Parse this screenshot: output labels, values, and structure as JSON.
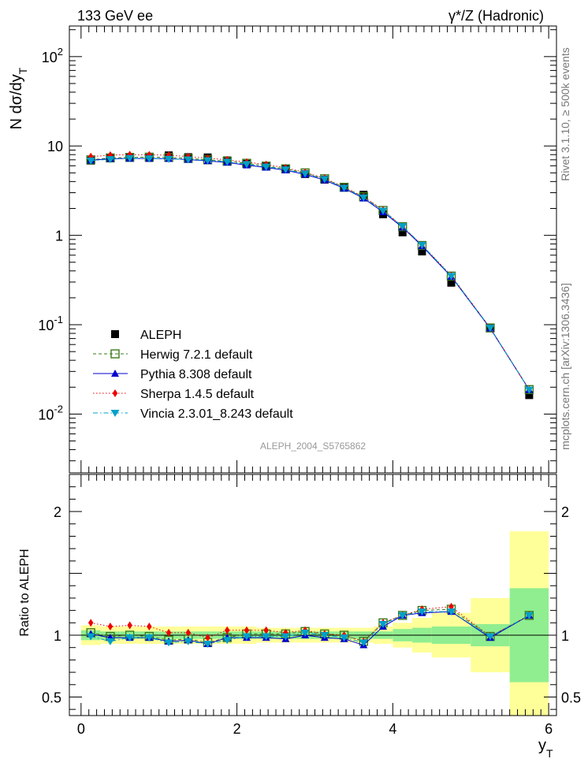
{
  "header": {
    "left": "133 GeV ee",
    "right": "γ*/Z (Hadronic)"
  },
  "side_labels": {
    "top": "Rivet 3.1.10, ≥ 500k events",
    "bottom": "mcplots.cern.ch [arXiv:1306.3436]"
  },
  "watermark": "ALEPH_2004_S5765862",
  "chart_data": [
    {
      "type": "scatter",
      "panel": "main",
      "ylabel": "N dσ/dy_T",
      "yscale": "log",
      "ylim": [
        0.0022,
        220
      ],
      "xlim": [
        -0.15,
        6.1
      ],
      "ytick_labels": [
        "10^-2",
        "10^-1",
        "1",
        "10",
        "10^2"
      ],
      "legend_position": "left-center",
      "series": [
        {
          "name": "ALEPH",
          "color": "#000000",
          "marker": "square-filled",
          "line": "none",
          "x": [
            0.125,
            0.375,
            0.625,
            0.875,
            1.125,
            1.375,
            1.625,
            1.875,
            2.125,
            2.375,
            2.625,
            2.875,
            3.125,
            3.375,
            3.625,
            3.875,
            4.125,
            4.375,
            4.75,
            5.25,
            5.75
          ],
          "values": [
            6.85,
            7.4,
            7.4,
            7.35,
            7.85,
            7.5,
            7.45,
            6.9,
            6.3,
            5.9,
            5.55,
            4.85,
            4.2,
            3.45,
            2.85,
            1.72,
            1.08,
            0.66,
            0.295,
            0.093,
            0.0163
          ]
        },
        {
          "name": "Herwig 7.2.1 default",
          "color": "#3b7a1a",
          "marker": "square-open",
          "line": "dashed",
          "x": [
            0.125,
            0.375,
            0.625,
            0.875,
            1.125,
            1.375,
            1.625,
            1.875,
            2.125,
            2.375,
            2.625,
            2.875,
            3.125,
            3.375,
            3.625,
            3.875,
            4.125,
            4.375,
            4.75,
            5.25,
            5.75
          ],
          "values": [
            7.0,
            7.35,
            7.45,
            7.5,
            7.45,
            7.25,
            7.0,
            6.75,
            6.4,
            5.95,
            5.55,
            5.0,
            4.3,
            3.45,
            2.7,
            1.9,
            1.25,
            0.77,
            0.35,
            0.092,
            0.0188
          ]
        },
        {
          "name": "Pythia 8.308 default",
          "color": "#0000cc",
          "marker": "triangle-up",
          "line": "solid",
          "x": [
            0.125,
            0.375,
            0.625,
            0.875,
            1.125,
            1.375,
            1.625,
            1.875,
            2.125,
            2.375,
            2.625,
            2.875,
            3.125,
            3.375,
            3.625,
            3.875,
            4.125,
            4.375,
            4.75,
            5.25,
            5.75
          ],
          "values": [
            6.9,
            7.2,
            7.25,
            7.25,
            7.2,
            7.05,
            6.8,
            6.55,
            6.1,
            5.75,
            5.35,
            4.8,
            4.15,
            3.35,
            2.6,
            1.82,
            1.23,
            0.76,
            0.345,
            0.091,
            0.0187
          ]
        },
        {
          "name": "Sherpa 1.4.5 default",
          "color": "#ee0000",
          "marker": "diamond",
          "line": "dotted",
          "x": [
            0.125,
            0.375,
            0.625,
            0.875,
            1.125,
            1.375,
            1.625,
            1.875,
            2.125,
            2.375,
            2.625,
            2.875,
            3.125,
            3.375,
            3.625,
            3.875,
            4.125,
            4.375,
            4.75,
            5.25,
            5.75
          ],
          "values": [
            7.6,
            7.9,
            8.0,
            7.95,
            7.9,
            7.6,
            7.3,
            7.0,
            6.6,
            6.2,
            5.7,
            5.05,
            4.35,
            3.45,
            2.7,
            1.92,
            1.25,
            0.78,
            0.355,
            0.092,
            0.0188
          ]
        },
        {
          "name": "Vincia 2.3.01_8.243 default",
          "color": "#00a0c8",
          "marker": "triangle-down",
          "line": "dashdot",
          "x": [
            0.125,
            0.375,
            0.625,
            0.875,
            1.125,
            1.375,
            1.625,
            1.875,
            2.125,
            2.375,
            2.625,
            2.875,
            3.125,
            3.375,
            3.625,
            3.875,
            4.125,
            4.375,
            4.75,
            5.25,
            5.75
          ],
          "values": [
            6.85,
            7.1,
            7.3,
            7.25,
            7.15,
            7.05,
            6.9,
            6.65,
            6.25,
            5.85,
            5.45,
            4.9,
            4.25,
            3.4,
            2.65,
            1.88,
            1.26,
            0.78,
            0.35,
            0.092,
            0.0187
          ]
        }
      ]
    },
    {
      "type": "scatter",
      "panel": "ratio",
      "ylabel": "Ratio to ALEPH",
      "xlabel": "y_T",
      "ylim": [
        0.35,
        2.3
      ],
      "xlim": [
        -0.15,
        6.1
      ],
      "yticks": [
        0.5,
        1,
        2
      ],
      "ytick_labels": [
        "0.5",
        "1",
        "2"
      ],
      "xticks": [
        0,
        2,
        4,
        6
      ],
      "xtick_labels": [
        "0",
        "2",
        "4",
        "6"
      ],
      "reference_line": 1,
      "bands": {
        "edges": [
          0,
          0.25,
          0.5,
          0.75,
          1,
          1.25,
          1.5,
          1.75,
          2,
          2.25,
          2.5,
          2.75,
          3,
          3.25,
          3.5,
          3.75,
          4,
          4.25,
          4.5,
          5,
          5.5,
          6
        ],
        "inner": [
          0.04,
          0.03,
          0.03,
          0.03,
          0.03,
          0.03,
          0.03,
          0.03,
          0.03,
          0.03,
          0.03,
          0.03,
          0.03,
          0.03,
          0.03,
          0.03,
          0.05,
          0.06,
          0.07,
          0.09,
          0.38
        ],
        "outer": [
          0.08,
          0.07,
          0.07,
          0.07,
          0.07,
          0.07,
          0.07,
          0.07,
          0.07,
          0.06,
          0.06,
          0.06,
          0.06,
          0.06,
          0.06,
          0.07,
          0.1,
          0.14,
          0.18,
          0.3,
          0.84
        ],
        "inner_color": "#90ee90",
        "outer_color": "#ffff99"
      },
      "series": [
        {
          "name": "Herwig 7.2.1 default",
          "color": "#3b7a1a",
          "x": [
            0.125,
            0.375,
            0.625,
            0.875,
            1.125,
            1.375,
            1.625,
            1.875,
            2.125,
            2.375,
            2.625,
            2.875,
            3.125,
            3.375,
            3.625,
            3.875,
            4.125,
            4.375,
            4.75,
            5.25,
            5.75
          ],
          "values": [
            1.02,
            0.99,
            1.0,
            0.99,
            0.96,
            0.97,
            0.94,
            0.98,
            1.01,
            1.01,
            1.01,
            1.03,
            1.01,
            1.0,
            0.95,
            1.1,
            1.16,
            1.2,
            1.21,
            0.99,
            1.16
          ]
        },
        {
          "name": "Pythia 8.308 default",
          "color": "#0000cc",
          "x": [
            0.125,
            0.375,
            0.625,
            0.875,
            1.125,
            1.375,
            1.625,
            1.875,
            2.125,
            2.375,
            2.625,
            2.875,
            3.125,
            3.375,
            3.625,
            3.875,
            4.125,
            4.375,
            4.75,
            5.25,
            5.75
          ],
          "values": [
            1.01,
            0.98,
            0.98,
            0.98,
            0.95,
            0.96,
            0.93,
            0.98,
            0.98,
            0.98,
            0.97,
            1.0,
            0.98,
            0.97,
            0.92,
            1.07,
            1.16,
            1.18,
            1.19,
            0.98,
            1.16
          ]
        },
        {
          "name": "Sherpa 1.4.5 default",
          "color": "#ee0000",
          "x": [
            0.125,
            0.375,
            0.625,
            0.875,
            1.125,
            1.375,
            1.625,
            1.875,
            2.125,
            2.375,
            2.625,
            2.875,
            3.125,
            3.375,
            3.625,
            3.875,
            4.125,
            4.375,
            4.75,
            5.25,
            5.75
          ],
          "values": [
            1.1,
            1.07,
            1.08,
            1.07,
            1.02,
            1.02,
            0.98,
            1.04,
            1.04,
            1.04,
            1.02,
            1.04,
            1.01,
            1.0,
            0.95,
            1.1,
            1.16,
            1.21,
            1.23,
            0.99,
            1.16
          ]
        },
        {
          "name": "Vincia 2.3.01_8.243 default",
          "color": "#00a0c8",
          "x": [
            0.125,
            0.375,
            0.625,
            0.875,
            1.125,
            1.375,
            1.625,
            1.875,
            2.125,
            2.375,
            2.625,
            2.875,
            3.125,
            3.375,
            3.625,
            3.875,
            4.125,
            4.375,
            4.75,
            5.25,
            5.75
          ],
          "values": [
            0.99,
            0.95,
            0.98,
            0.98,
            0.94,
            0.95,
            0.93,
            0.96,
            0.99,
            0.99,
            0.99,
            1.02,
            1.0,
            0.98,
            0.94,
            1.09,
            1.16,
            1.19,
            1.19,
            0.99,
            1.16
          ]
        }
      ]
    }
  ]
}
